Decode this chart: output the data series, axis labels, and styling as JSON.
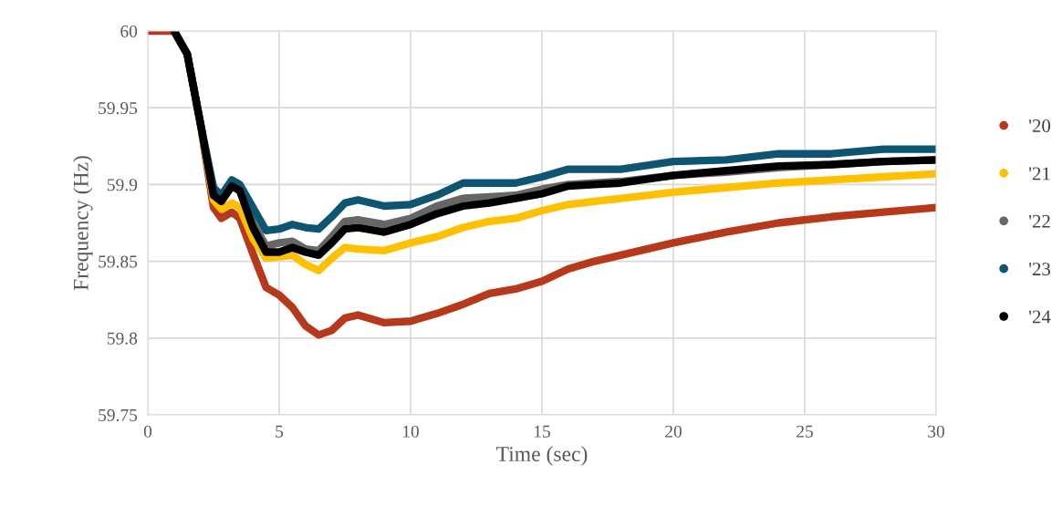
{
  "chart_data": {
    "type": "line",
    "xlabel": "Time (sec)",
    "ylabel": "Frequency (Hz)",
    "x": [
      0,
      1,
      1.5,
      2,
      2.5,
      2.8,
      3.2,
      3.5,
      4,
      4.5,
      5,
      5.5,
      6,
      6.5,
      7,
      7.5,
      8,
      9,
      10,
      11,
      12,
      13,
      14,
      15,
      16,
      17,
      18,
      20,
      22,
      24,
      26,
      28,
      30
    ],
    "series": [
      {
        "name": "'20",
        "color": "#b5391a",
        "values": [
          60,
          60,
          59.985,
          59.94,
          59.885,
          59.878,
          59.882,
          59.878,
          59.855,
          59.833,
          59.828,
          59.82,
          59.808,
          59.802,
          59.805,
          59.813,
          59.815,
          59.81,
          59.811,
          59.816,
          59.822,
          59.829,
          59.832,
          59.837,
          59.845,
          59.85,
          59.854,
          59.862,
          59.869,
          59.875,
          59.879,
          59.882,
          59.885
        ]
      },
      {
        "name": "'21",
        "color": "#ffc000",
        "values": [
          null,
          null,
          null,
          59.94,
          59.89,
          59.884,
          59.888,
          59.885,
          59.865,
          59.852,
          59.853,
          59.854,
          59.848,
          59.844,
          59.852,
          59.859,
          59.858,
          59.857,
          59.862,
          59.866,
          59.872,
          59.876,
          59.878,
          59.883,
          59.887,
          59.889,
          59.891,
          59.895,
          59.898,
          59.901,
          59.903,
          59.905,
          59.907
        ]
      },
      {
        "name": "'22",
        "color": "#666666",
        "values": [
          null,
          60,
          59.985,
          59.94,
          59.894,
          59.89,
          59.899,
          59.896,
          59.875,
          59.86,
          59.862,
          59.863,
          59.858,
          59.857,
          59.866,
          59.876,
          59.877,
          59.874,
          59.878,
          59.886,
          59.891,
          59.892,
          59.893,
          59.897,
          59.9,
          59.901,
          59.902,
          59.906,
          59.908,
          59.911,
          59.913,
          59.915,
          59.916
        ]
      },
      {
        "name": "'23",
        "color": "#0e5572",
        "values": [
          null,
          60,
          59.985,
          59.94,
          59.898,
          59.893,
          59.903,
          59.9,
          59.885,
          59.87,
          59.871,
          59.874,
          59.872,
          59.871,
          59.879,
          59.888,
          59.89,
          59.886,
          59.887,
          59.893,
          59.901,
          59.901,
          59.901,
          59.905,
          59.91,
          59.91,
          59.91,
          59.915,
          59.916,
          59.92,
          59.92,
          59.923,
          59.923
        ]
      },
      {
        "name": "'24",
        "color": "#000000",
        "values": [
          null,
          60,
          59.985,
          59.94,
          59.893,
          59.889,
          59.899,
          59.896,
          59.872,
          59.856,
          59.856,
          59.859,
          59.856,
          59.854,
          59.862,
          59.871,
          59.872,
          59.869,
          59.874,
          59.881,
          59.886,
          59.888,
          59.891,
          59.894,
          59.899,
          59.9,
          59.901,
          59.906,
          59.909,
          59.912,
          59.913,
          59.915,
          59.916
        ]
      }
    ],
    "xlim": [
      0,
      30
    ],
    "xticks": [
      0,
      5,
      10,
      15,
      20,
      25,
      30
    ],
    "ylim": [
      59.75,
      60
    ],
    "yticks": [
      59.75,
      59.8,
      59.85,
      59.9,
      59.95,
      60
    ],
    "grid": true,
    "legend": "right"
  }
}
